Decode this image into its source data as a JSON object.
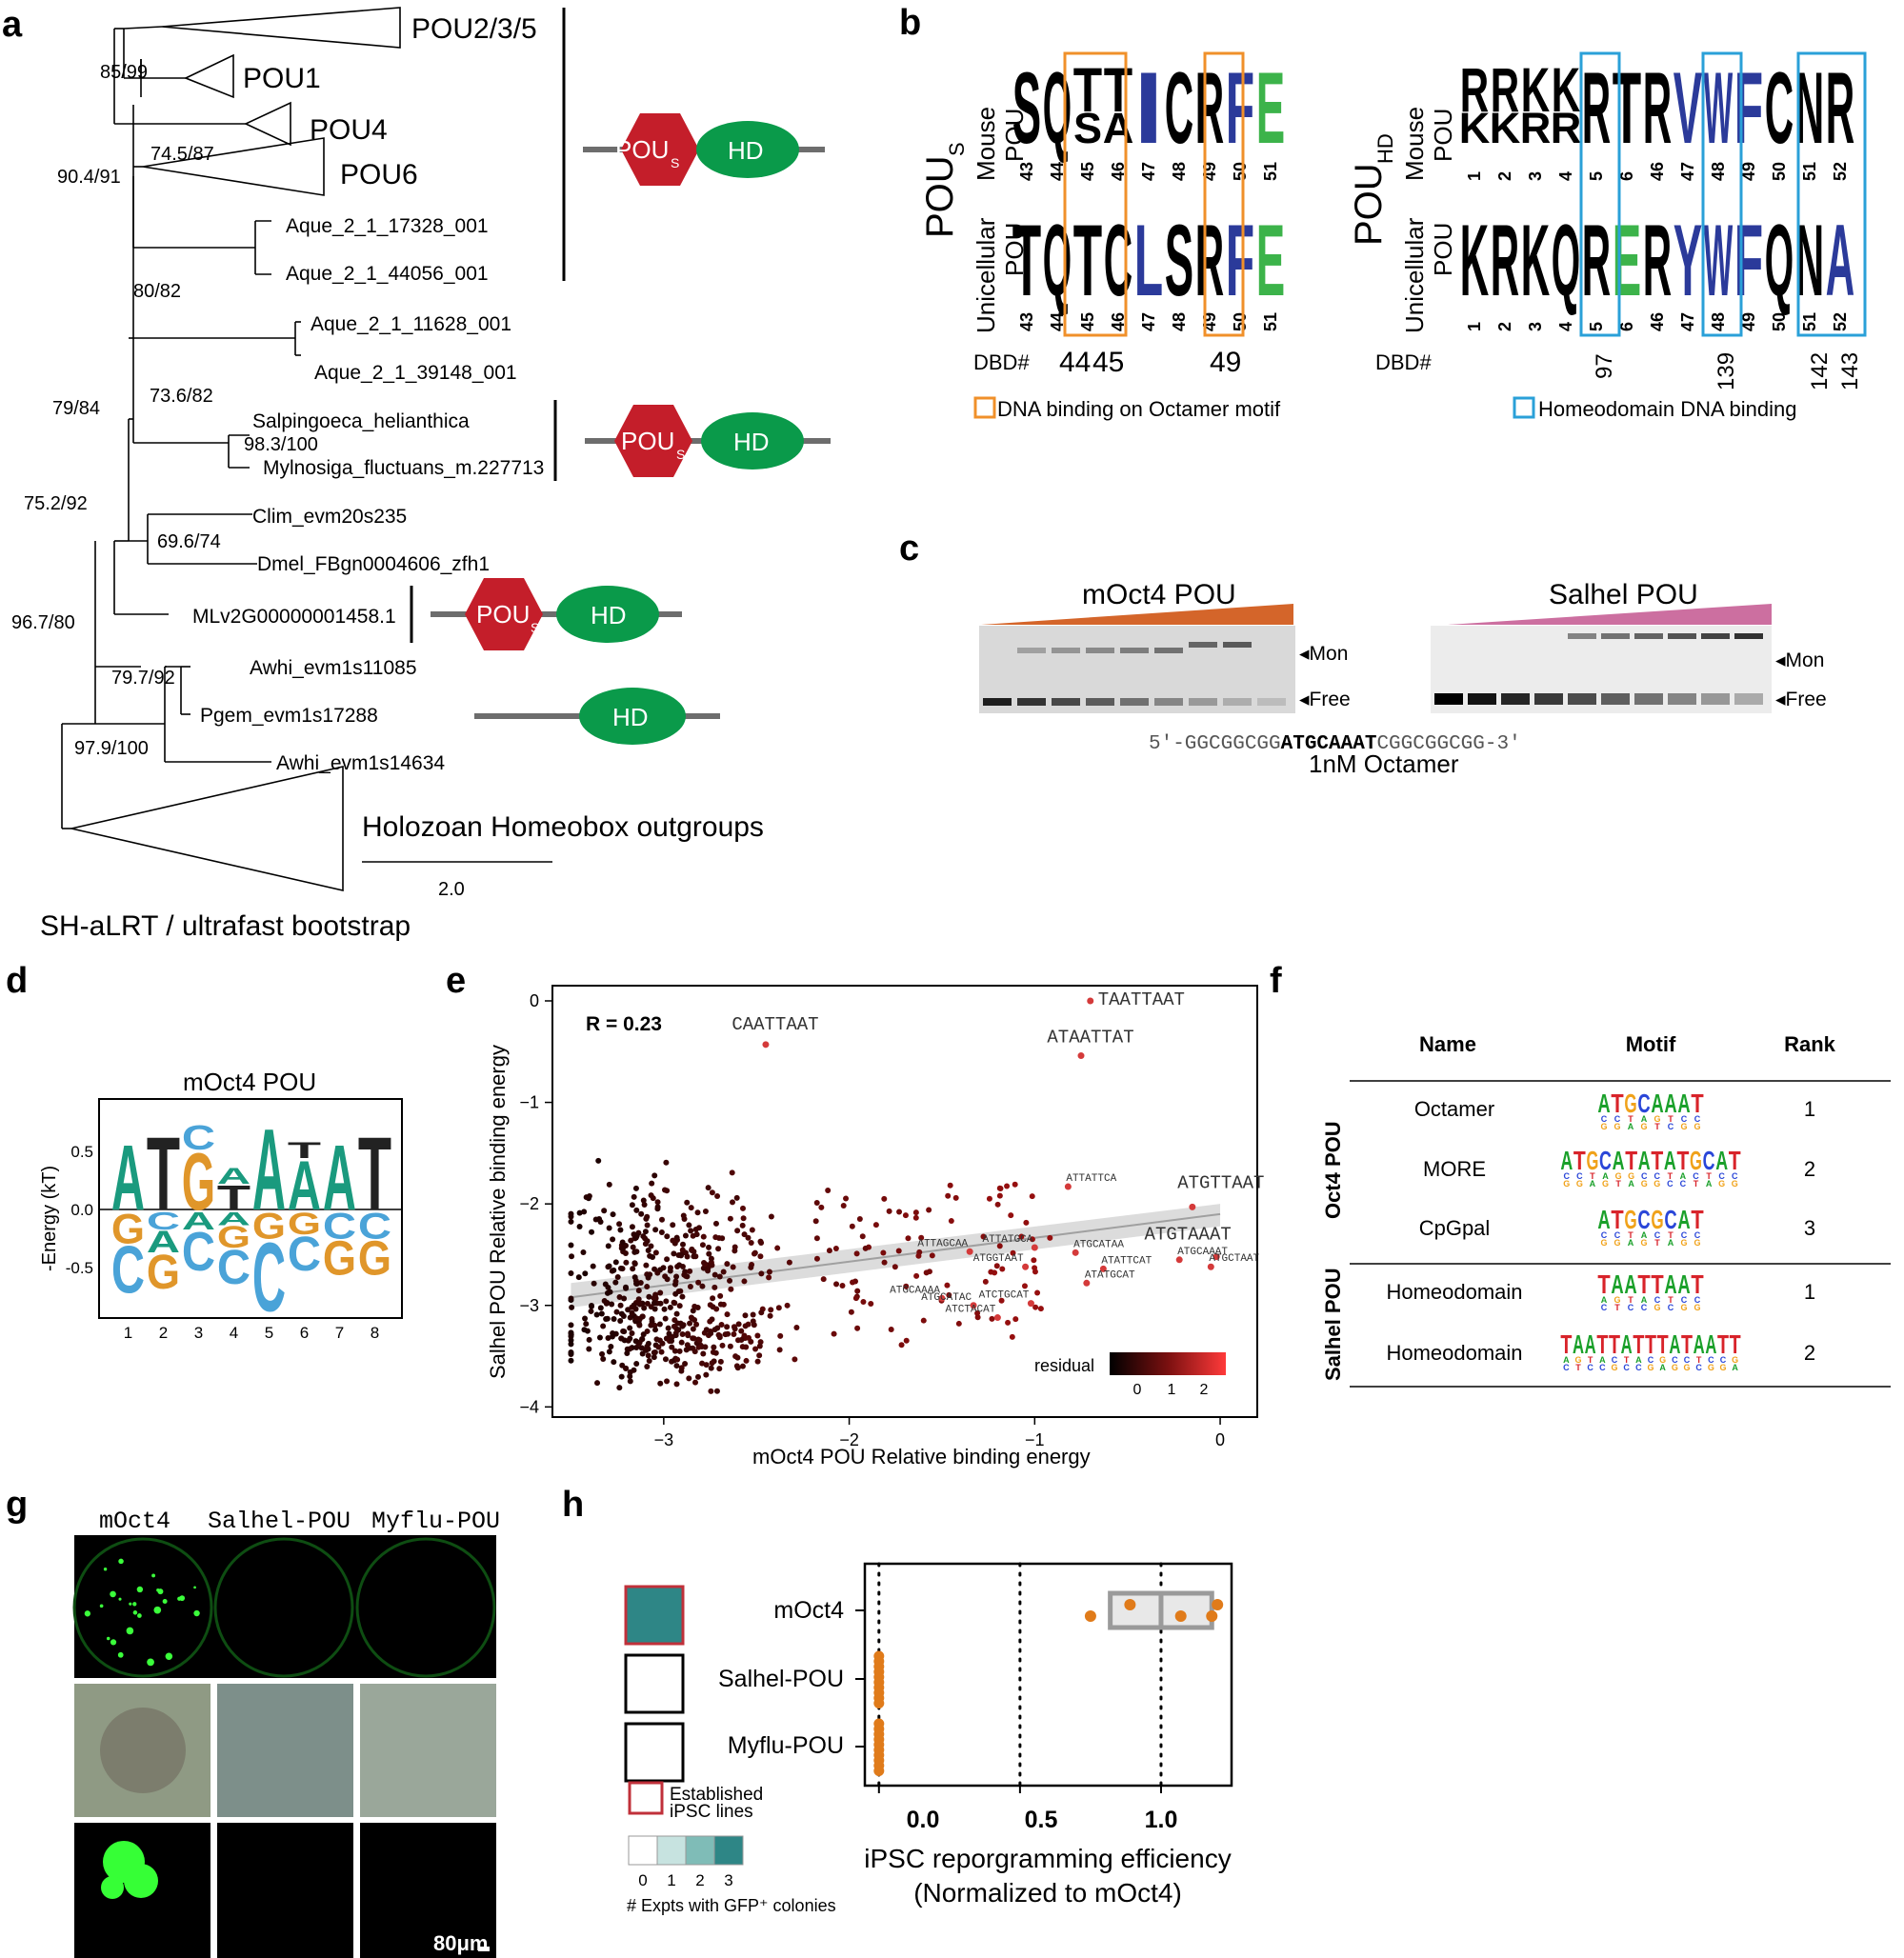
{
  "panel_labels": {
    "a": "a",
    "b": "b",
    "c": "c",
    "d": "d",
    "e": "e",
    "f": "f",
    "g": "g",
    "h": "h"
  },
  "panel_a": {
    "clades": [
      "POU2/3/5",
      "POU1",
      "POU4",
      "POU6"
    ],
    "leaves": [
      "Aque_2_1_17328_001",
      "Aque_2_1_44056_001",
      "Aque_2_1_11628_001",
      "Aque_2_1_39148_001",
      "Salpingoeca_helianthica",
      "Mylnosiga_fluctuans_m.227713",
      "Clim_evm20s235",
      "Dmel_FBgn0004606_zfh1",
      "MLv2G00000001458.1",
      "Awhi_evm1s11085",
      "Pgem_evm1s17288",
      "Awhi_evm1s14634"
    ],
    "outgroup": "Holozoan Homeobox outgroups",
    "supports": [
      "85/99",
      "90.4/91",
      "74.5/87",
      "80/82",
      "73.6/82",
      "98.3/100",
      "79/84",
      "75.2/92",
      "69.6/74",
      "96.7/80",
      "79.7/92",
      "97.9/100"
    ],
    "scale_label": "2.0",
    "footer": "SH-aLRT / ultrafast bootstrap",
    "domain_labels": {
      "pou": "POU",
      "pou_sub": "S",
      "hd": "HD"
    },
    "colors": {
      "pou": "#c41e2a",
      "hd": "#0a9a4a",
      "line": "#6d6d6d"
    }
  },
  "panel_b": {
    "left_group": {
      "main": "POU",
      "sub": "S"
    },
    "right_group": {
      "main": "POU",
      "sub": "HD"
    },
    "row_labels": {
      "mouse": [
        "Mouse",
        "POU"
      ],
      "unicellular": [
        "Unicellular",
        "POU"
      ]
    },
    "left_mouse_letters": [
      "S",
      "Q",
      "T",
      "T",
      "I",
      "C",
      "R",
      "F",
      "E"
    ],
    "left_mouse_minor": [
      "",
      "",
      "S",
      "A",
      "",
      "",
      "",
      "",
      ""
    ],
    "left_uni_letters": [
      "T",
      "Q",
      "T",
      "C",
      "L",
      "S",
      "R",
      "F",
      "E"
    ],
    "left_positions": [
      "43",
      "44",
      "45",
      "46",
      "47",
      "48",
      "49",
      "50",
      "51"
    ],
    "right_mouse_letters": [
      "R",
      "R",
      "K",
      "K",
      "R",
      "T",
      "R",
      "V",
      "W",
      "F",
      "C",
      "N",
      "R"
    ],
    "right_mouse_minor": [
      "K",
      "K",
      "R",
      "R",
      "",
      "",
      "",
      "",
      "",
      "",
      "",
      "",
      ""
    ],
    "right_uni_letters": [
      "K",
      "R",
      "K",
      "Q",
      "R",
      "E",
      "R",
      "Y",
      "W",
      "F",
      "Q",
      "N",
      "A"
    ],
    "right_positions": [
      "1",
      "2",
      "3",
      "4",
      "5",
      "6",
      "46",
      "47",
      "48",
      "49",
      "50",
      "51",
      "52"
    ],
    "dbd_label": "DBD#",
    "dbd_left": [
      "44",
      "45",
      "49"
    ],
    "dbd_right": [
      "97",
      "139",
      "142",
      "143"
    ],
    "legend_orange": "DNA binding on Octamer motif",
    "legend_blue": "Homeodomain DNA binding",
    "colors": {
      "orange": "#f0902a",
      "blue": "#2aa0d8",
      "navy": "#2b3a9a",
      "green": "#3cb34a"
    }
  },
  "panel_c": {
    "left_title": "mOct4 POU",
    "right_title": "Salhel POU",
    "band_mon": "◂Mon",
    "band_free": "◂Free",
    "seq_prefix": "5′-GGCGGCGG",
    "seq_core": "ATGCAAAT",
    "seq_suffix": "CGGCGGCGG-3′",
    "caption": "1nM Octamer",
    "colors": {
      "left_wedge": "#d4652a",
      "right_wedge": "#cc6fa0"
    }
  },
  "panel_d": {
    "title": "mOct4 POU",
    "ylabel": "-Energy (kT)",
    "yticks": [
      "0.5",
      "0.0",
      "-0.5"
    ],
    "xticks": [
      "1",
      "2",
      "3",
      "4",
      "5",
      "6",
      "7",
      "8"
    ],
    "top_letters": [
      "A",
      "T",
      "G",
      "C/T",
      "A",
      "A",
      "A",
      "T"
    ],
    "bottom_letters": [
      "G/C",
      "C/A/G",
      "A/C",
      "A/G/C",
      "G/C",
      "G/C",
      "C/G",
      "C/G"
    ],
    "colors": {
      "A": "#1a9a7e",
      "C": "#4aa3d8",
      "G": "#e0962a",
      "T": "#222222"
    }
  },
  "panel_e": {
    "r_label": "R = 0.23",
    "xlabel": "mOct4 POU Relative binding energy",
    "ylabel": "Salhel POU Relative binding energy",
    "xticks": [
      "−3",
      "−2",
      "−1",
      "0"
    ],
    "yticks": [
      "0",
      "−1",
      "−2",
      "−3",
      "−4"
    ],
    "point_labels": [
      "TAATTAAT",
      "ATAATTAT",
      "CAATTAAT",
      "ATGTTAAT",
      "ATGTAAAT",
      "ATTATTCA",
      "ATTATGCA",
      "ATTAGCAA",
      "ATGCATAA",
      "ATGGTAAT",
      "ATATTCAT",
      "ATGCAAAT",
      "ATGCTAAT",
      "ATATGCAT",
      "ATGCAAAA",
      "ATGCATAC",
      "ATCTGCAT",
      "ATCTACAT"
    ],
    "legend_title": "residual",
    "legend_ticks": [
      "0",
      "1",
      "2"
    ],
    "chart_data": {
      "type": "scatter",
      "xlabel": "mOct4 POU Relative binding energy",
      "ylabel": "Salhel POU Relative binding energy",
      "xlim": [
        -3.6,
        0.2
      ],
      "ylim": [
        -4.1,
        0.15
      ],
      "annotation": "R = 0.23",
      "fit": {
        "x": [
          -3.5,
          0.0
        ],
        "y": [
          -2.92,
          -2.1
        ]
      },
      "labeled_points": [
        {
          "label": "TAATTAAT",
          "x": -0.7,
          "y": 0.0
        },
        {
          "label": "ATAATTAT",
          "x": -0.75,
          "y": -0.54
        },
        {
          "label": "CAATTAAT",
          "x": -2.45,
          "y": -0.43
        },
        {
          "label": "ATGTTAAT",
          "x": -0.15,
          "y": -2.03
        },
        {
          "label": "ATGTAAAT",
          "x": -0.02,
          "y": -2.52
        },
        {
          "label": "ATTATTCA",
          "x": -0.82,
          "y": -1.83
        },
        {
          "label": "ATTATGCA",
          "x": -1.0,
          "y": -2.43
        },
        {
          "label": "ATTAGCAA",
          "x": -1.35,
          "y": -2.47
        },
        {
          "label": "ATGCATAA",
          "x": -0.78,
          "y": -2.48
        },
        {
          "label": "ATGGTAAT",
          "x": -1.05,
          "y": -2.62
        },
        {
          "label": "ATATTCAT",
          "x": -0.63,
          "y": -2.64
        },
        {
          "label": "ATGCAAAT",
          "x": -0.22,
          "y": -2.55
        },
        {
          "label": "ATGCTAAT",
          "x": -0.05,
          "y": -2.62
        },
        {
          "label": "ATATGCAT",
          "x": -0.72,
          "y": -2.78
        },
        {
          "label": "ATGCAAAA",
          "x": -1.5,
          "y": -2.93
        },
        {
          "label": "ATGCATAC",
          "x": -1.33,
          "y": -3.0
        },
        {
          "label": "ATCTGCAT",
          "x": -1.02,
          "y": -2.98
        },
        {
          "label": "ATCTACAT",
          "x": -1.2,
          "y": -3.12
        }
      ],
      "colorbar": {
        "label": "residual",
        "range": [
          -0.3,
          2.5
        ]
      }
    }
  },
  "panel_f": {
    "headers": [
      "Name",
      "Motif",
      "Rank"
    ],
    "groups": [
      {
        "label": "Oct4 POU",
        "rows": [
          {
            "name": "Octamer",
            "motif": "ATGCAAAT",
            "rank": "1"
          },
          {
            "name": "MORE",
            "motif": "ATGCATATATGCAT",
            "rank": "2"
          },
          {
            "name": "CpGpal",
            "motif": "ATGCGCAT",
            "rank": "3"
          }
        ]
      },
      {
        "label": "Salhel POU",
        "rows": [
          {
            "name": "Homeodomain",
            "motif": "TAATTAAT",
            "rank": "1"
          },
          {
            "name": "Homeodomain",
            "motif": "TAATTATTTATAATT",
            "rank": "2"
          }
        ]
      }
    ]
  },
  "panel_g": {
    "columns": [
      "mOct4",
      "Salhel-POU",
      "Myflu-POU"
    ],
    "scale_bar": "80μm"
  },
  "panel_h": {
    "categories": [
      "mOct4",
      "Salhel-POU",
      "Myflu-POU"
    ],
    "xticks": [
      "0.0",
      "0.5",
      "1.0"
    ],
    "xlabel_lines": [
      "iPSC reporgramming efficiency",
      "(Normalized to mOct4)"
    ],
    "legend_established": [
      "Established",
      "iPSC lines"
    ],
    "legend_scale_ticks": [
      "0",
      "1",
      "2",
      "3"
    ],
    "legend_scale_label": "# Expts with GFP⁺ colonies",
    "colors": {
      "dot": "#e07b1a",
      "box": "#9a9a9a",
      "heat": [
        "#ffffff",
        "#c7e3e0",
        "#7fbcb7",
        "#2e8686"
      ],
      "established": "#c0303a"
    },
    "chart_data": {
      "type": "box",
      "categories": [
        "mOct4",
        "Salhel-POU",
        "Myflu-POU"
      ],
      "xlim": [
        -0.05,
        1.25
      ],
      "series": [
        {
          "category": "mOct4",
          "points": [
            0.75,
            0.89,
            1.07,
            1.2,
            1.18
          ]
        },
        {
          "category": "Salhel-POU",
          "points": [
            0,
            0,
            0,
            0,
            0,
            0,
            0,
            0,
            0,
            0
          ]
        },
        {
          "category": "Myflu-POU",
          "points": [
            0,
            0,
            0,
            0,
            0,
            0,
            0,
            0,
            0,
            0
          ]
        }
      ],
      "heat_values": [
        3,
        0,
        0
      ],
      "established": [
        true,
        false,
        false
      ]
    }
  }
}
